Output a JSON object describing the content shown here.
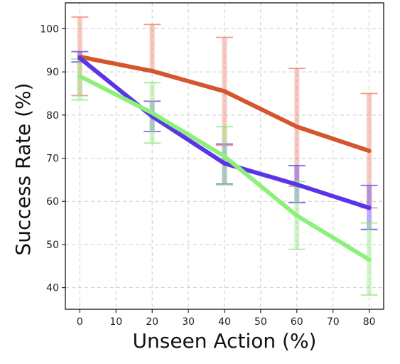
{
  "chart_data": {
    "type": "line",
    "xlabel": "Unseen Action (%)",
    "ylabel": "Success Rate (%)",
    "xlim": [
      -4,
      84
    ],
    "ylim": [
      35,
      106
    ],
    "x_ticks": [
      0,
      10,
      20,
      30,
      40,
      50,
      60,
      70,
      80
    ],
    "y_ticks": [
      40,
      50,
      60,
      70,
      80,
      90,
      100
    ],
    "grid": true,
    "legend": "none",
    "x": [
      0,
      20,
      40,
      60,
      80
    ],
    "series": [
      {
        "color": "#d4552e",
        "errorbar_color": "#f08c78",
        "values": [
          93.5,
          90.2,
          85.5,
          77.3,
          71.7
        ],
        "err_low": [
          84.5,
          null,
          73.0,
          63.5,
          58.5
        ],
        "err_high": [
          102.7,
          101.0,
          98.0,
          90.8,
          85.0
        ]
      },
      {
        "color": "#5a35e8",
        "errorbar_color": "#6a50f0",
        "values": [
          93.2,
          79.7,
          68.8,
          63.9,
          58.5
        ],
        "err_low": [
          92.3,
          76.2,
          64.0,
          59.7,
          53.5
        ],
        "err_high": [
          94.7,
          83.2,
          73.3,
          68.3,
          63.7
        ]
      },
      {
        "color": "#8ef07a",
        "errorbar_color": "#9ae888",
        "values": [
          89.0,
          80.5,
          70.4,
          56.7,
          46.5
        ],
        "err_low": [
          83.5,
          73.5,
          63.8,
          48.9,
          38.3
        ],
        "err_high": [
          93.0,
          87.5,
          77.3,
          64.6,
          55.0
        ]
      }
    ]
  }
}
